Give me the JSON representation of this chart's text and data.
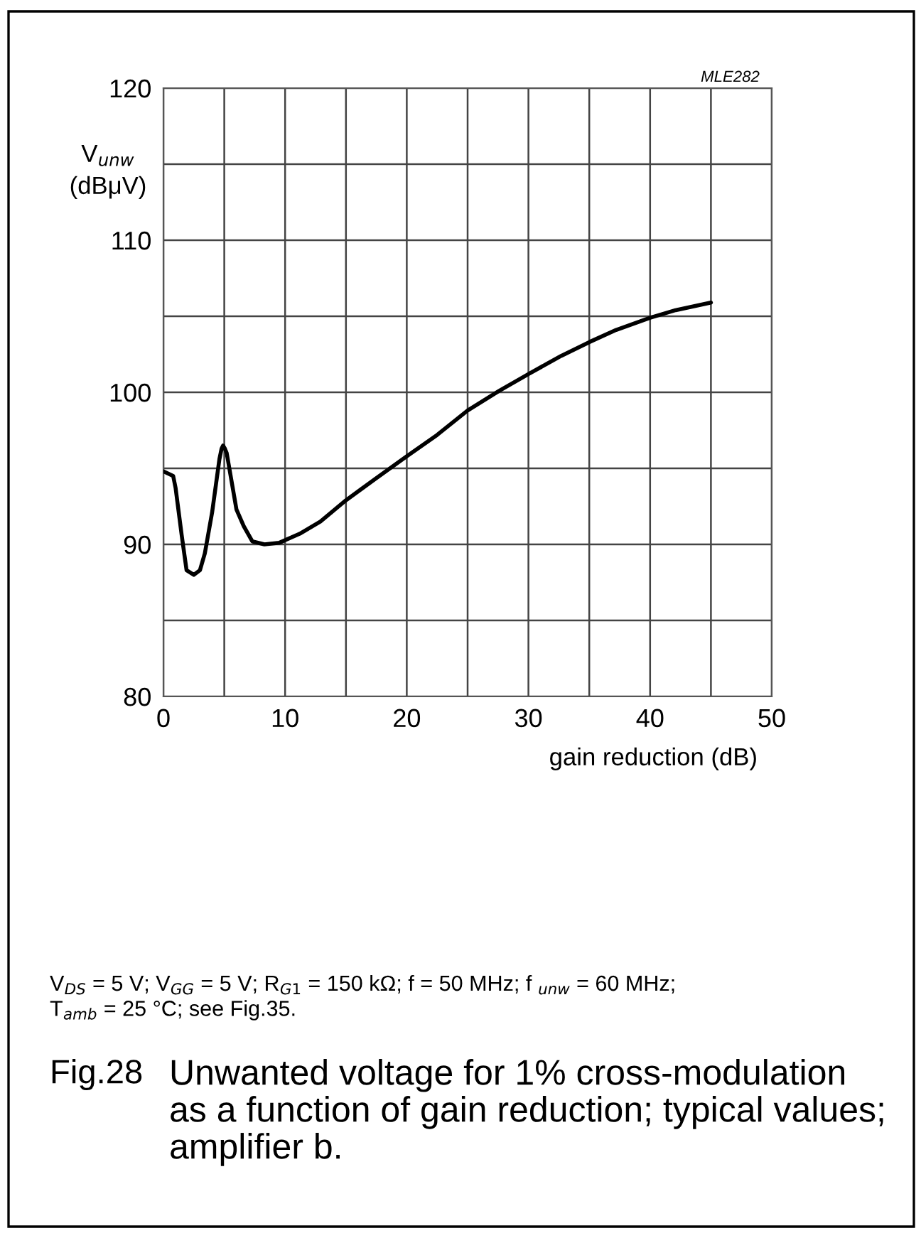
{
  "chart_data": {
    "type": "line",
    "title": "Fig.28 Unwanted voltage for 1% cross-modulation\nas a function of gain reduction; typical values;\namplifier b.",
    "xlabel": "gain reduction (dB)",
    "ylabel": "V$_{unw}$\n(dBμV)",
    "annotations": [
      "MLE282",
      "V$_{DS}$ = 5 V; V$_{GG}$ = 5 V; R$_{G1}$ = 150 kΩ; f = 50 MHz; f $_{unw}$ = 60 MHz;\nT$_{amb}$ = 25 °C; see Fig.35."
    ],
    "x": [
      0,
      0.8,
      1.0,
      1.5,
      1.9,
      2.5,
      3.0,
      3.4,
      4.0,
      4.6,
      4.78,
      4.9,
      5.05,
      5.2,
      6.0,
      6.6,
      7.3,
      8.3,
      9.5,
      11.2,
      12.9,
      15.0,
      17.4,
      20,
      22.5,
      25,
      27.6,
      30,
      32.7,
      35,
      37.2,
      40,
      42.1,
      45
    ],
    "series": [
      {
        "color": "#000000",
        "values": [
          94.8,
          94.5,
          93.7,
          90.6,
          88.3,
          88.0,
          88.3,
          89.4,
          92.1,
          95.6,
          96.3,
          96.5,
          96.3,
          96.0,
          92.3,
          91.2,
          90.2,
          90.0,
          90.1,
          90.7,
          91.5,
          92.9,
          94.3,
          95.8,
          97.2,
          98.8,
          100.1,
          101.2,
          102.4,
          103.3,
          104.1,
          104.9,
          105.4,
          105.9
        ]
      }
    ],
    "xlim": [
      0,
      50
    ],
    "ylim": [
      80,
      120
    ],
    "xticks": [
      0,
      {
        "value": 5,
        "label": null
      },
      10,
      {
        "value": 15,
        "label": null
      },
      20,
      {
        "value": 25,
        "label": null
      },
      30,
      {
        "value": 35,
        "label": null
      },
      40,
      {
        "value": 45,
        "label": null
      },
      50
    ],
    "yticks": [
      80,
      {
        "value": 85,
        "label": null
      },
      90,
      {
        "value": 95,
        "label": null
      },
      100,
      {
        "value": 105,
        "label": null
      },
      110,
      {
        "value": 115,
        "label": null
      },
      120
    ],
    "grid": true,
    "line_style": "solid",
    "marker": "none"
  }
}
